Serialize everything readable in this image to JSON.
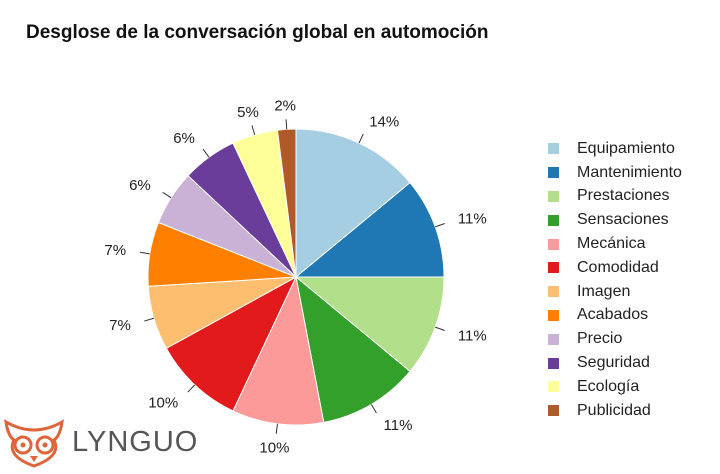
{
  "chart_data": {
    "type": "pie",
    "title": "Desglose de la conversación global en automoción",
    "slices": [
      {
        "label": "Equipamiento",
        "value": 14,
        "value_label": "14%",
        "color": "#a6cee3"
      },
      {
        "label": "Mantenimiento",
        "value": 11,
        "value_label": "11%",
        "color": "#1f78b4"
      },
      {
        "label": "Prestaciones",
        "value": 11,
        "value_label": "11%",
        "color": "#b2df8a"
      },
      {
        "label": "Sensaciones",
        "value": 11,
        "value_label": "11%",
        "color": "#33a02c"
      },
      {
        "label": "Mecánica",
        "value": 10,
        "value_label": "10%",
        "color": "#fb9a99"
      },
      {
        "label": "Comodidad",
        "value": 10,
        "value_label": "10%",
        "color": "#e31a1c"
      },
      {
        "label": "Imagen",
        "value": 7,
        "value_label": "7%",
        "color": "#fdbf6f"
      },
      {
        "label": "Acabados",
        "value": 7,
        "value_label": "7%",
        "color": "#ff7f00"
      },
      {
        "label": "Precio",
        "value": 6,
        "value_label": "6%",
        "color": "#cab2d6"
      },
      {
        "label": "Seguridad",
        "value": 6,
        "value_label": "6%",
        "color": "#6a3d9a"
      },
      {
        "label": "Ecología",
        "value": 5,
        "value_label": "5%",
        "color": "#ffff99"
      },
      {
        "label": "Publicidad",
        "value": 2,
        "value_label": "2%",
        "color": "#b15928"
      }
    ],
    "legend_position": "right"
  },
  "watermark": {
    "text": "LYNGUO",
    "icon": "owl-icon",
    "color": "#e0643a"
  }
}
